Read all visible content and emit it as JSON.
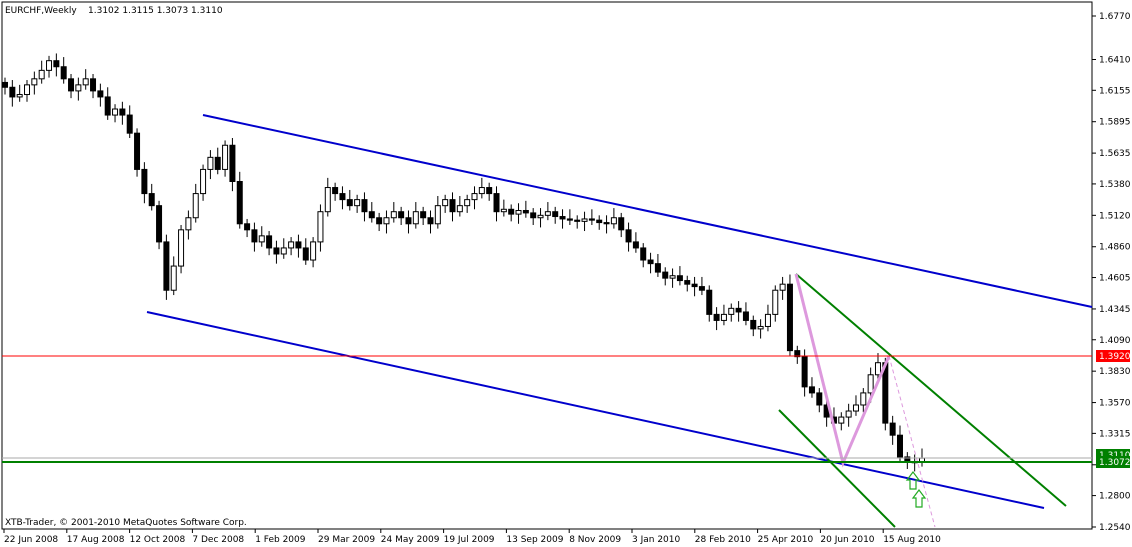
{
  "header": {
    "symbol": "EURCHF,Weekly",
    "ohlc": "1.3102 1.3115 1.3073 1.3110"
  },
  "footer": {
    "copyright": "XTB-Trader, © 2001-2010 MetaQuotes Software Corp."
  },
  "colors": {
    "background": "#ffffff",
    "candle": "#000000",
    "blue_channel": "#0000cc",
    "green_channel": "#008000",
    "red_level": "#ff0000",
    "green_level": "#008000",
    "pink_lines": "#dd99dd",
    "arrow": "#22aa22"
  },
  "chart_data": {
    "type": "candlestick",
    "timeframe": "Weekly",
    "symbol": "EURCHF",
    "ylim": [
      1.254,
      1.677
    ],
    "y_ticks": [
      "1.6770",
      "1.6410",
      "1.6155",
      "1.5895",
      "1.5635",
      "1.5380",
      "1.5120",
      "1.4860",
      "1.4605",
      "1.4345",
      "1.4090",
      "1.3830",
      "1.3570",
      "1.3315",
      "1.3055",
      "1.2800",
      "1.2540"
    ],
    "x_ticks": [
      "22 Jun 2008",
      "17 Aug 2008",
      "12 Oct 2008",
      "7 Dec 2008",
      "1 Feb 2009",
      "29 Mar 2009",
      "24 May 2009",
      "19 Jul 2009",
      "13 Sep 2009",
      "8 Nov 2009",
      "3 Jan 2010",
      "28 Feb 2010",
      "25 Apr 2010",
      "20 Jun 2010",
      "15 Aug 2010"
    ],
    "price_levels": [
      {
        "label": "1.3920",
        "value": 1.392,
        "color": "#ff0000"
      },
      {
        "label": "1.3072",
        "value": 1.3072,
        "color": "#008000"
      }
    ],
    "hidden_tag_text": "1.3110",
    "closes": [
      1.618,
      1.61,
      1.612,
      1.62,
      1.625,
      1.632,
      1.64,
      1.635,
      1.625,
      1.615,
      1.62,
      1.625,
      1.615,
      1.61,
      1.595,
      1.6,
      1.595,
      1.58,
      1.55,
      1.53,
      1.52,
      1.49,
      1.45,
      1.47,
      1.5,
      1.51,
      1.53,
      1.55,
      1.56,
      1.55,
      1.57,
      1.54,
      1.505,
      1.5,
      1.49,
      1.495,
      1.485,
      1.48,
      1.485,
      1.49,
      1.485,
      1.475,
      1.49,
      1.515,
      1.535,
      1.53,
      1.525,
      1.52,
      1.525,
      1.515,
      1.51,
      1.505,
      1.51,
      1.515,
      1.51,
      1.505,
      1.515,
      1.51,
      1.505,
      1.52,
      1.525,
      1.515,
      1.52,
      1.525,
      1.53,
      1.535,
      1.53,
      1.515,
      1.517,
      1.513,
      1.516,
      1.514,
      1.51,
      1.512,
      1.515,
      1.511,
      1.509,
      1.508,
      1.507,
      1.509,
      1.508,
      1.506,
      1.505,
      1.51,
      1.5,
      1.49,
      1.485,
      1.475,
      1.472,
      1.465,
      1.46,
      1.462,
      1.458,
      1.455,
      1.453,
      1.45,
      1.43,
      1.425,
      1.43,
      1.435,
      1.432,
      1.425,
      1.418,
      1.42,
      1.43,
      1.45,
      1.455,
      1.4,
      1.395,
      1.37,
      1.365,
      1.355,
      1.345,
      1.34,
      1.345,
      1.35,
      1.355,
      1.365,
      1.38,
      1.39,
      1.34,
      1.33,
      1.312,
      1.308,
      1.308,
      1.311
    ],
    "series": [
      {
        "kind": "trendline",
        "color": "#0000cc",
        "points": [
          [
            "Dec 2008",
            1.587
          ],
          [
            "Aug 2010",
            1.433
          ]
        ]
      },
      {
        "kind": "trendline",
        "color": "#0000cc",
        "points": [
          [
            "Oct 2008",
            1.43
          ],
          [
            "Aug 2010",
            1.279
          ]
        ]
      },
      {
        "kind": "trendline",
        "color": "#008000",
        "points": [
          [
            "Apr 2010",
            1.46
          ],
          [
            "Sep 2010",
            1.282
          ]
        ]
      },
      {
        "kind": "trendline",
        "color": "#008000",
        "points": [
          [
            "Jun 2010",
            1.362
          ],
          [
            "Aug 2010",
            1.255
          ]
        ]
      }
    ]
  }
}
